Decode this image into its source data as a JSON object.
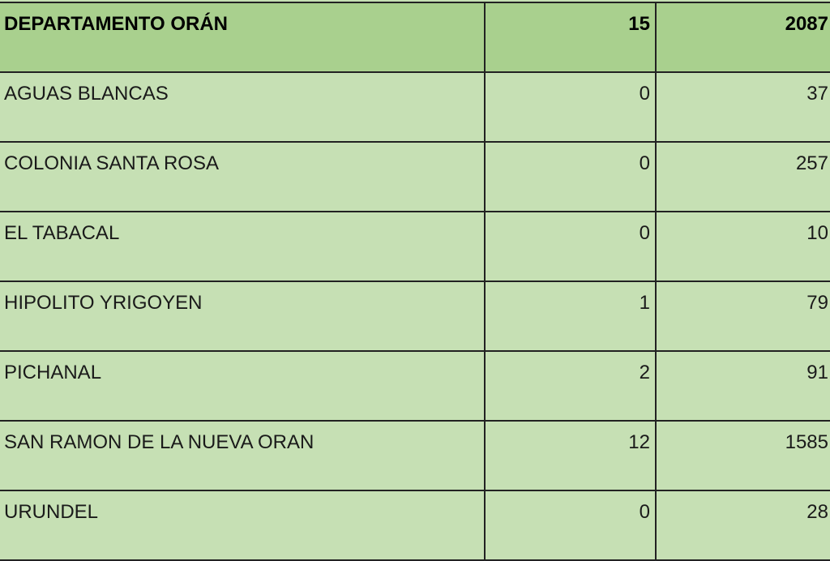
{
  "header": {
    "name": "DEPARTAMENTO ORÁN",
    "col2": "15",
    "col3": "2087"
  },
  "rows": [
    {
      "name": "AGUAS BLANCAS",
      "col2": "0",
      "col3": "37"
    },
    {
      "name": "COLONIA SANTA ROSA",
      "col2": "0",
      "col3": "257"
    },
    {
      "name": "EL TABACAL",
      "col2": "0",
      "col3": "10"
    },
    {
      "name": "HIPOLITO YRIGOYEN",
      "col2": "1",
      "col3": "79"
    },
    {
      "name": "PICHANAL",
      "col2": "2",
      "col3": "91"
    },
    {
      "name": "SAN RAMON DE LA NUEVA ORAN",
      "col2": "12",
      "col3": "1585"
    },
    {
      "name": "URUNDEL",
      "col2": "0",
      "col3": "28"
    }
  ],
  "colors": {
    "header_bg": "#a9d08e",
    "row_bg": "#c6e0b4",
    "border": "#222222"
  }
}
